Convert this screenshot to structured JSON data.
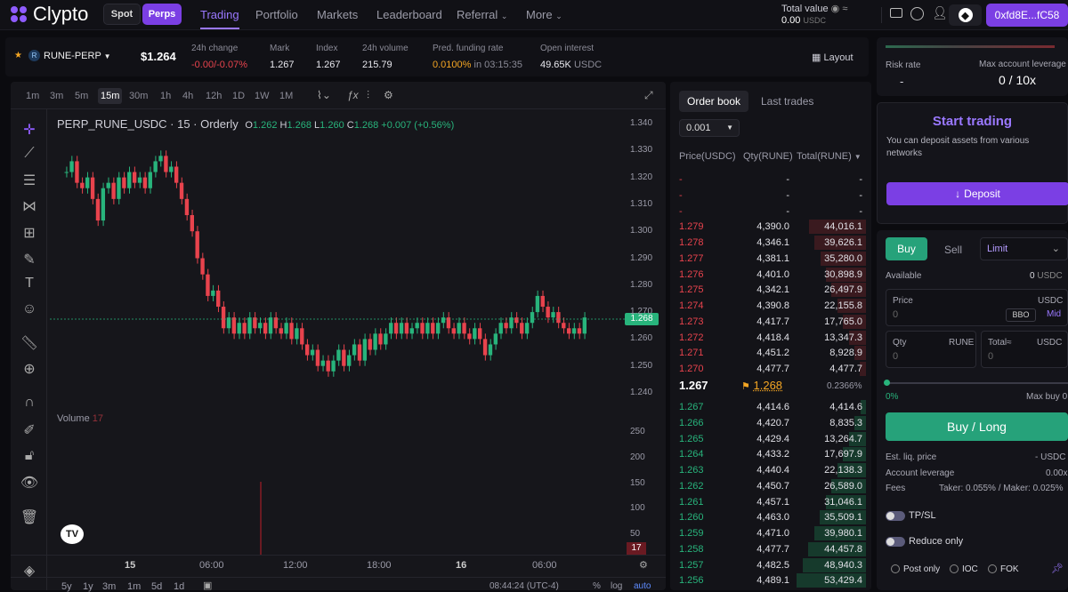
{
  "brand": {
    "name": "Clypto"
  },
  "header": {
    "spot_label": "Spot",
    "perps_label": "Perps",
    "nav": [
      "Trading",
      "Portfolio",
      "Markets",
      "Leaderboard",
      "Referral",
      "More"
    ],
    "total_value_label": "Total value",
    "total_value": "0.00",
    "total_value_unit": "USDC",
    "wallet": "0xfd8E...fC58"
  },
  "market": {
    "symbol": "RUNE-PERP",
    "price": "$1.264",
    "stats": [
      {
        "label": "24h change",
        "value": "-0.00/-0.07%"
      },
      {
        "label": "Mark",
        "value": "1.267"
      },
      {
        "label": "Index",
        "value": "1.267"
      },
      {
        "label": "24h volume",
        "value": "215.79"
      },
      {
        "label": "Pred. funding rate",
        "value": "0.0100%",
        "suffix": "in 03:15:35"
      },
      {
        "label": "Open interest",
        "value": "49.65K",
        "suffix": "USDC"
      }
    ],
    "layout_label": "Layout"
  },
  "chart": {
    "timeframes": [
      "1m",
      "3m",
      "5m",
      "15m",
      "30m",
      "1h",
      "4h",
      "12h",
      "1D",
      "1W",
      "1M"
    ],
    "active_tf": "15m",
    "legend_title": "PERP_RUNE_USDC · 15 · Orderly",
    "ohlc": {
      "O": "1.262",
      "H": "1.268",
      "L": "1.260",
      "C": "1.268",
      "chg": "+0.007 (+0.56%)"
    },
    "price_ticks": [
      "1.340",
      "1.330",
      "1.320",
      "1.310",
      "1.300",
      "1.290",
      "1.280",
      "1.270",
      "1.260",
      "1.250",
      "1.240"
    ],
    "last_price": "1.268",
    "volume_label": "Volume",
    "volume_value": "17",
    "volume_ticks": [
      "250",
      "200",
      "150",
      "100",
      "50"
    ],
    "volume_last": "17",
    "time_ticks": [
      "15",
      "06:00",
      "12:00",
      "18:00",
      "16",
      "06:00"
    ],
    "range_buttons": [
      "5y",
      "1y",
      "3m",
      "1m",
      "5d",
      "1d"
    ],
    "clock": "08:44:24 (UTC-4)",
    "pct_label": "%",
    "log_label": "log",
    "auto_label": "auto"
  },
  "orderbook": {
    "tabs": [
      "Order book",
      "Last trades"
    ],
    "tick": "0.001",
    "headers": [
      "Price(USDC)",
      "Qty(RUNE)",
      "Total(RUNE)"
    ],
    "asks": [
      [
        "-",
        "-",
        "-"
      ],
      [
        "-",
        "-",
        "-"
      ],
      [
        "-",
        "-",
        "-"
      ],
      [
        "1.279",
        "4,390.0",
        "44,016.1"
      ],
      [
        "1.278",
        "4,346.1",
        "39,626.1"
      ],
      [
        "1.277",
        "4,381.1",
        "35,280.0"
      ],
      [
        "1.276",
        "4,401.0",
        "30,898.9"
      ],
      [
        "1.275",
        "4,342.1",
        "26,497.9"
      ],
      [
        "1.274",
        "4,390.8",
        "22,155.8"
      ],
      [
        "1.273",
        "4,417.7",
        "17,765.0"
      ],
      [
        "1.272",
        "4,418.4",
        "13,347.3"
      ],
      [
        "1.271",
        "4,451.2",
        "8,928.9"
      ],
      [
        "1.270",
        "4,477.7",
        "4,477.7"
      ]
    ],
    "mid_price": "1.267",
    "mark_price": "1.268",
    "spread": "0.2366%",
    "bids": [
      [
        "1.267",
        "4,414.6",
        "4,414.6"
      ],
      [
        "1.266",
        "4,420.7",
        "8,835.3"
      ],
      [
        "1.265",
        "4,429.4",
        "13,264.7"
      ],
      [
        "1.264",
        "4,433.2",
        "17,697.9"
      ],
      [
        "1.263",
        "4,440.4",
        "22,138.3"
      ],
      [
        "1.262",
        "4,450.7",
        "26,589.0"
      ],
      [
        "1.261",
        "4,457.1",
        "31,046.1"
      ],
      [
        "1.260",
        "4,463.0",
        "35,509.1"
      ],
      [
        "1.259",
        "4,471.0",
        "39,980.1"
      ],
      [
        "1.258",
        "4,477.7",
        "44,457.8"
      ],
      [
        "1.257",
        "4,482.5",
        "48,940.3"
      ],
      [
        "1.256",
        "4,489.1",
        "53,429.4"
      ]
    ]
  },
  "account": {
    "risk_rate_label": "Risk rate",
    "risk_rate": "-",
    "max_leverage_label": "Max account leverage",
    "max_leverage": "0 / 10x"
  },
  "start": {
    "title": "Start trading",
    "desc": "You can deposit assets from various networks",
    "deposit_label": "Deposit"
  },
  "order": {
    "buy_label": "Buy",
    "sell_label": "Sell",
    "type": "Limit",
    "available_label": "Available",
    "available_value": "0",
    "available_unit": "USDC",
    "price_label": "Price",
    "price_unit": "USDC",
    "price_placeholder": "0",
    "bbo_label": "BBO",
    "mid_label": "Mid",
    "qty_label": "Qty",
    "qty_unit": "RUNE",
    "qty_placeholder": "0",
    "total_label": "Total≈",
    "total_unit": "USDC",
    "total_placeholder": "0",
    "slider_min": "0%",
    "max_buy_label": "Max buy",
    "max_buy_value": "0",
    "submit_label": "Buy / Long",
    "liq_label": "Est. liq. price",
    "liq_value": "-",
    "liq_unit": "USDC",
    "lev_label": "Account leverage",
    "lev_value": "0.00x",
    "fees_label": "Fees",
    "fees_value": "Taker: 0.055% / Maker: 0.025%",
    "tpsl_label": "TP/SL",
    "reduce_label": "Reduce only",
    "opt_post": "Post only",
    "opt_ioc": "IOC",
    "opt_fok": "FOK"
  },
  "colors": {
    "accent": "#7b3fe4",
    "up": "#28b47c",
    "down": "#e8434d",
    "bg": "#0b0b0f"
  }
}
